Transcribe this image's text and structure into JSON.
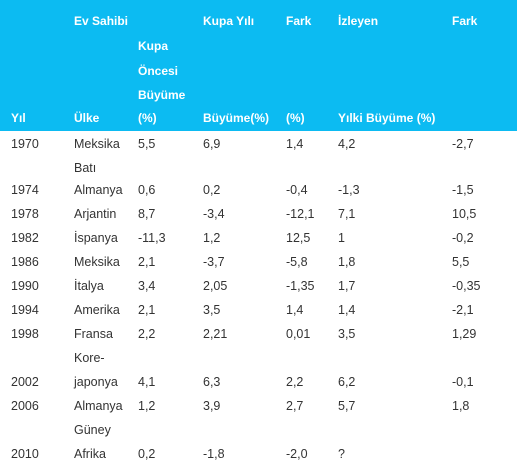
{
  "header": {
    "top": [
      "Ev Sahibi",
      "Kupa Yılı",
      "Fark",
      "İzleyen",
      "Fark"
    ],
    "sub_lines": [
      "Kupa",
      "Öncesi",
      "Büyüme",
      "(%)"
    ],
    "bottom": [
      "Yıl",
      "Ülke",
      "Büyüme(%)",
      "(%)",
      "Yılki Büyüme (%)"
    ]
  },
  "rows": [
    {
      "year": "1970",
      "country": [
        "Meksika",
        "Batı"
      ],
      "pre": "5,5",
      "cup": "6,9",
      "diff1": "1,4",
      "next": "4,2",
      "diff2": "-2,7"
    },
    {
      "year": "1974",
      "country": [
        "Almanya"
      ],
      "pre": "0,6",
      "cup": "0,2",
      "diff1": "-0,4",
      "next": "-1,3",
      "diff2": "-1,5"
    },
    {
      "year": "1978",
      "country": [
        "Arjantin"
      ],
      "pre": "8,7",
      "cup": "-3,4",
      "diff1": "-12,1",
      "next": "7,1",
      "diff2": "10,5"
    },
    {
      "year": "1982",
      "country": [
        "İspanya"
      ],
      "pre": "-11,3",
      "cup": "1,2",
      "diff1": "12,5",
      "next": "1",
      "diff2": "-0,2"
    },
    {
      "year": "1986",
      "country": [
        "Meksika"
      ],
      "pre": "2,1",
      "cup": "-3,7",
      "diff1": "-5,8",
      "next": "1,8",
      "diff2": "5,5"
    },
    {
      "year": "1990",
      "country": [
        "İtalya"
      ],
      "pre": "3,4",
      "cup": "2,05",
      "diff1": "-1,35",
      "next": "1,7",
      "diff2": "-0,35"
    },
    {
      "year": "1994",
      "country": [
        "Amerika"
      ],
      "pre": "2,1",
      "cup": "3,5",
      "diff1": "1,4",
      "next": "1,4",
      "diff2": "-2,1"
    },
    {
      "year": "1998",
      "country": [
        "Fransa",
        "Kore-"
      ],
      "pre": "2,2",
      "cup": "2,21",
      "diff1": "0,01",
      "next": "3,5",
      "diff2": "1,29"
    },
    {
      "year": "2002",
      "country": [
        "japonya"
      ],
      "pre": "4,1",
      "cup": "6,3",
      "diff1": "2,2",
      "next": "6,2",
      "diff2": "-0,1"
    },
    {
      "year": "2006",
      "country": [
        "Almanya",
        "Güney"
      ],
      "pre": "1,2",
      "cup": "3,9",
      "diff1": "2,7",
      "next": "5,7",
      "diff2": "1,8"
    },
    {
      "year": "2010",
      "country": [
        "Afrika"
      ],
      "pre": "0,2",
      "cup": "-1,8",
      "diff1": "-2,0",
      "next": "?",
      "diff2": ""
    }
  ]
}
